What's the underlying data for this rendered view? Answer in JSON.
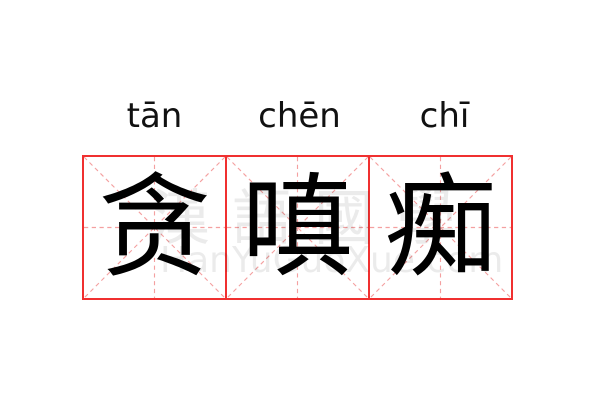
{
  "pinyin": [
    "tān",
    "chēn",
    "chī"
  ],
  "characters": [
    "贪",
    "嗔",
    "痴"
  ],
  "watermark": {
    "characters": "漢語國學",
    "site": "HanYuGuoXue.com"
  },
  "colors": {
    "grid_border": "#f03030",
    "guide_lines": "#f4a0a0"
  }
}
